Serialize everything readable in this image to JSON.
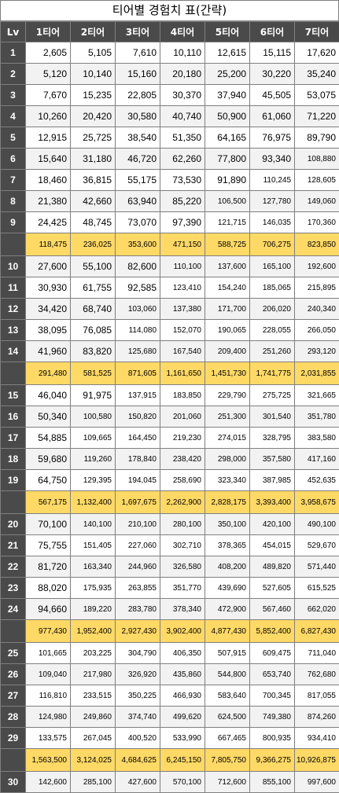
{
  "title": "티어별 경험치 표(간략)",
  "headers": [
    "Lv",
    "1티어",
    "2티어",
    "3티어",
    "4티어",
    "5티어",
    "6티어",
    "7티어"
  ],
  "rows": [
    {
      "type": "level",
      "lv": "1",
      "vals": [
        "2,605",
        "5,105",
        "7,610",
        "10,110",
        "12,615",
        "15,115",
        "17,620"
      ]
    },
    {
      "type": "level",
      "lv": "2",
      "vals": [
        "5,120",
        "10,140",
        "15,160",
        "20,180",
        "25,200",
        "30,220",
        "35,240"
      ]
    },
    {
      "type": "level",
      "lv": "3",
      "vals": [
        "7,670",
        "15,235",
        "22,805",
        "30,370",
        "37,940",
        "45,505",
        "53,075"
      ]
    },
    {
      "type": "level",
      "lv": "4",
      "vals": [
        "10,260",
        "20,420",
        "30,580",
        "40,740",
        "50,900",
        "61,060",
        "71,220"
      ]
    },
    {
      "type": "level",
      "lv": "5",
      "vals": [
        "12,915",
        "25,725",
        "38,540",
        "51,350",
        "64,165",
        "76,975",
        "89,790"
      ]
    },
    {
      "type": "level",
      "lv": "6",
      "vals": [
        "15,640",
        "31,180",
        "46,720",
        "62,260",
        "77,800",
        "93,340",
        "108,880"
      ]
    },
    {
      "type": "level",
      "lv": "7",
      "vals": [
        "18,460",
        "36,815",
        "55,175",
        "73,530",
        "91,890",
        "110,245",
        "128,605"
      ]
    },
    {
      "type": "level",
      "lv": "8",
      "vals": [
        "21,380",
        "42,660",
        "63,940",
        "85,220",
        "106,500",
        "127,780",
        "149,060"
      ]
    },
    {
      "type": "level",
      "lv": "9",
      "vals": [
        "24,425",
        "48,745",
        "73,070",
        "97,390",
        "121,715",
        "146,035",
        "170,360"
      ]
    },
    {
      "type": "sum",
      "lv": "",
      "vals": [
        "118,475",
        "236,025",
        "353,600",
        "471,150",
        "588,725",
        "706,275",
        "823,850"
      ]
    },
    {
      "type": "level",
      "lv": "10",
      "vals": [
        "27,600",
        "55,100",
        "82,600",
        "110,100",
        "137,600",
        "165,100",
        "192,600"
      ]
    },
    {
      "type": "level",
      "lv": "11",
      "vals": [
        "30,930",
        "61,755",
        "92,585",
        "123,410",
        "154,240",
        "185,065",
        "215,895"
      ]
    },
    {
      "type": "level",
      "lv": "12",
      "vals": [
        "34,420",
        "68,740",
        "103,060",
        "137,380",
        "171,700",
        "206,020",
        "240,340"
      ]
    },
    {
      "type": "level",
      "lv": "13",
      "vals": [
        "38,095",
        "76,085",
        "114,080",
        "152,070",
        "190,065",
        "228,055",
        "266,050"
      ]
    },
    {
      "type": "level",
      "lv": "14",
      "vals": [
        "41,960",
        "83,820",
        "125,680",
        "167,540",
        "209,400",
        "251,260",
        "293,120"
      ]
    },
    {
      "type": "sum",
      "lv": "",
      "vals": [
        "291,480",
        "581,525",
        "871,605",
        "1,161,650",
        "1,451,730",
        "1,741,775",
        "2,031,855"
      ]
    },
    {
      "type": "level",
      "lv": "15",
      "vals": [
        "46,040",
        "91,975",
        "137,915",
        "183,850",
        "229,790",
        "275,725",
        "321,665"
      ]
    },
    {
      "type": "level",
      "lv": "16",
      "vals": [
        "50,340",
        "100,580",
        "150,820",
        "201,060",
        "251,300",
        "301,540",
        "351,780"
      ]
    },
    {
      "type": "level",
      "lv": "17",
      "vals": [
        "54,885",
        "109,665",
        "164,450",
        "219,230",
        "274,015",
        "328,795",
        "383,580"
      ]
    },
    {
      "type": "level",
      "lv": "18",
      "vals": [
        "59,680",
        "119,260",
        "178,840",
        "238,420",
        "298,000",
        "357,580",
        "417,160"
      ]
    },
    {
      "type": "level",
      "lv": "19",
      "vals": [
        "64,750",
        "129,395",
        "194,045",
        "258,690",
        "323,340",
        "387,985",
        "452,635"
      ]
    },
    {
      "type": "sum",
      "lv": "",
      "vals": [
        "567,175",
        "1,132,400",
        "1,697,675",
        "2,262,900",
        "2,828,175",
        "3,393,400",
        "3,958,675"
      ]
    },
    {
      "type": "level",
      "lv": "20",
      "vals": [
        "70,100",
        "140,100",
        "210,100",
        "280,100",
        "350,100",
        "420,100",
        "490,100"
      ]
    },
    {
      "type": "level",
      "lv": "21",
      "vals": [
        "75,755",
        "151,405",
        "227,060",
        "302,710",
        "378,365",
        "454,015",
        "529,670"
      ]
    },
    {
      "type": "level",
      "lv": "22",
      "vals": [
        "81,720",
        "163,340",
        "244,960",
        "326,580",
        "408,200",
        "489,820",
        "571,440"
      ]
    },
    {
      "type": "level",
      "lv": "23",
      "vals": [
        "88,020",
        "175,935",
        "263,855",
        "351,770",
        "439,690",
        "527,605",
        "615,525"
      ]
    },
    {
      "type": "level",
      "lv": "24",
      "vals": [
        "94,660",
        "189,220",
        "283,780",
        "378,340",
        "472,900",
        "567,460",
        "662,020"
      ]
    },
    {
      "type": "sum",
      "lv": "",
      "vals": [
        "977,430",
        "1,952,400",
        "2,927,430",
        "3,902,400",
        "4,877,430",
        "5,852,400",
        "6,827,430"
      ]
    },
    {
      "type": "level",
      "lv": "25",
      "vals": [
        "101,665",
        "203,225",
        "304,790",
        "406,350",
        "507,915",
        "609,475",
        "711,040"
      ]
    },
    {
      "type": "level",
      "lv": "26",
      "vals": [
        "109,040",
        "217,980",
        "326,920",
        "435,860",
        "544,800",
        "653,740",
        "762,680"
      ]
    },
    {
      "type": "level",
      "lv": "27",
      "vals": [
        "116,810",
        "233,515",
        "350,225",
        "466,930",
        "583,640",
        "700,345",
        "817,055"
      ]
    },
    {
      "type": "level",
      "lv": "28",
      "vals": [
        "124,980",
        "249,860",
        "374,740",
        "499,620",
        "624,500",
        "749,380",
        "874,260"
      ]
    },
    {
      "type": "level",
      "lv": "29",
      "vals": [
        "133,575",
        "267,045",
        "400,520",
        "533,990",
        "667,465",
        "800,935",
        "934,410"
      ]
    },
    {
      "type": "sum",
      "lv": "",
      "vals": [
        "1,563,500",
        "3,124,025",
        "4,684,625",
        "6,245,150",
        "7,805,750",
        "9,366,275",
        "10,926,875"
      ]
    },
    {
      "type": "level",
      "lv": "30",
      "vals": [
        "142,600",
        "285,100",
        "427,600",
        "570,100",
        "712,600",
        "855,100",
        "997,600"
      ]
    }
  ],
  "colors": {
    "header_bg": "#4a4a4a",
    "sum_bg": "#ffd966",
    "alt_row_bg": "#f2f2f2",
    "border": "#7f7f7f"
  }
}
